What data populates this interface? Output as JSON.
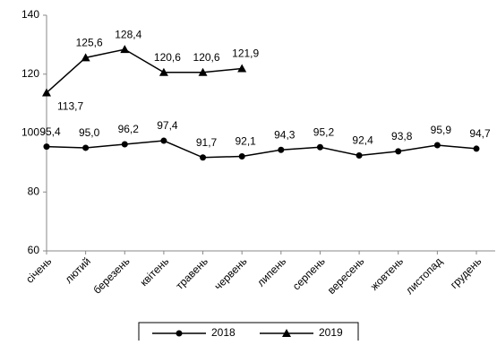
{
  "chart_data": {
    "type": "line",
    "categories": [
      "січень",
      "лютий",
      "березень",
      "квітень",
      "травень",
      "червень",
      "липень",
      "серпень",
      "вересень",
      "жовтень",
      "листопад",
      "грудень"
    ],
    "series": [
      {
        "name": "2018",
        "color": "#000000",
        "marker": "circle",
        "values": [
          95.4,
          95.0,
          96.2,
          97.4,
          91.7,
          92.1,
          94.3,
          95.2,
          92.4,
          93.8,
          95.9,
          94.7
        ],
        "value_labels": [
          "95,4",
          "95,0",
          "96,2",
          "97,4",
          "91,7",
          "92,1",
          "94,3",
          "95,2",
          "92,4",
          "93,8",
          "95,9",
          "94,7"
        ]
      },
      {
        "name": "2019",
        "color": "#000000",
        "marker": "triangle",
        "values": [
          113.7,
          125.6,
          128.4,
          120.6,
          120.6,
          121.9,
          null,
          null,
          null,
          null,
          null,
          null
        ],
        "value_labels": [
          "113,7",
          "125,6",
          "128,4",
          "120,6",
          "120,6",
          "121,9",
          null,
          null,
          null,
          null,
          null,
          null
        ]
      }
    ],
    "ylim": [
      60,
      140
    ],
    "yticks": [
      60,
      80,
      100,
      120,
      140
    ],
    "grid": false,
    "legend": "bottom"
  }
}
